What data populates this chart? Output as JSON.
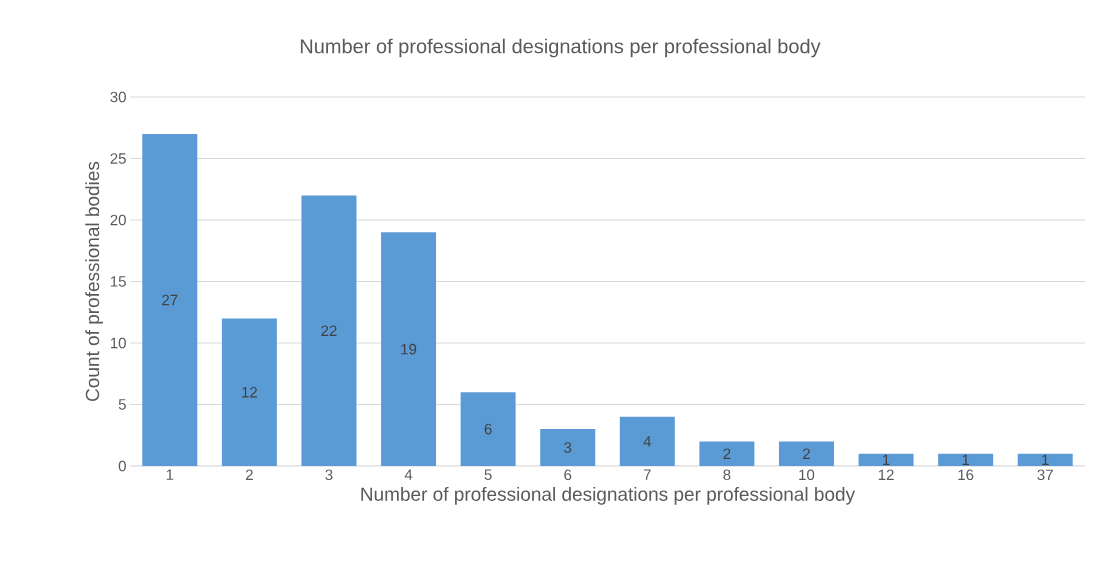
{
  "chart_data": {
    "type": "bar",
    "title": "Number of professional designations per professional body",
    "xlabel": "Number of professional designations per professional body",
    "ylabel": "Count  of professional bodies",
    "categories": [
      "1",
      "2",
      "3",
      "4",
      "5",
      "6",
      "7",
      "8",
      "10",
      "12",
      "16",
      "37"
    ],
    "values": [
      27,
      12,
      22,
      19,
      6,
      3,
      4,
      2,
      2,
      1,
      1,
      1
    ],
    "color": "#5b9bd5",
    "data_labels": true,
    "grid": "y",
    "ylim": [
      0,
      30
    ],
    "yticks": [
      0,
      5,
      10,
      15,
      20,
      25,
      30
    ]
  }
}
